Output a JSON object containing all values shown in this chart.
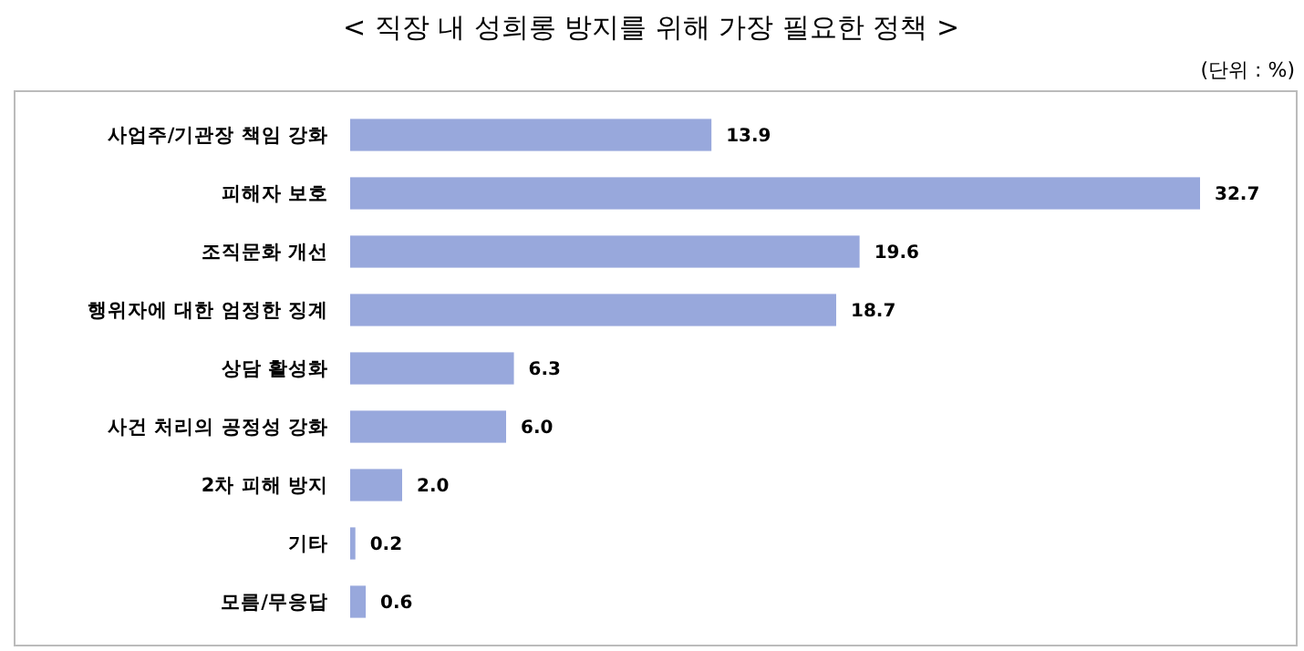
{
  "chart_data": {
    "type": "bar",
    "orientation": "horizontal",
    "title": "< 직장 내 성희롱 방지를 위해 가장 필요한 정책 >",
    "annotations": [
      "(단위 : %)"
    ],
    "categories": [
      "사업주/기관장 책임 강화",
      "피해자 보호",
      "조직문화 개선",
      "행위자에 대한 엄정한 징계",
      "상담 활성화",
      "사건 처리의 공정성 강화",
      "2차 피해 방지",
      "기타",
      "모름/무응답"
    ],
    "values": [
      13.9,
      32.7,
      19.6,
      18.7,
      6.3,
      6.0,
      2.0,
      0.2,
      0.6
    ],
    "value_labels": [
      "13.9",
      "32.7",
      "19.6",
      "18.7",
      "6.3",
      "6.0",
      "2.0",
      "0.2",
      "0.6"
    ],
    "color": "#98a8dc"
  }
}
